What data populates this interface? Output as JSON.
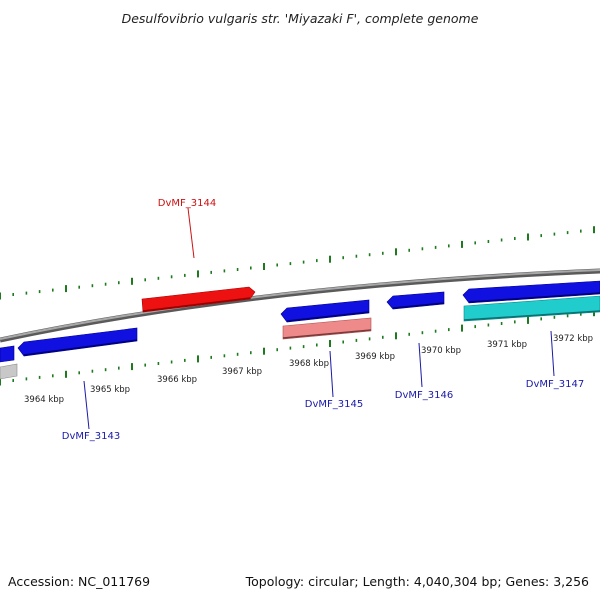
{
  "title": "Desulfovibrio vulgaris str. 'Miyazaki F', complete genome",
  "footer": {
    "accession": "Accession: NC_011769",
    "summary": "Topology: circular; Length: 4,040,304 bp; Genes: 3,256"
  },
  "colors": {
    "backbone": "#808080",
    "tick": "#1f7a1f",
    "gene_blue": "#1010e0",
    "gene_red": "#ee1111",
    "gene_pink": "#ee8a8a",
    "gene_cyan": "#20cccc",
    "gene_gray": "#c0c0c0",
    "label_blue": "#1a1aa8",
    "label_red": "#cc1111"
  },
  "ruler": {
    "labels": [
      "3964 kbp",
      "3965 kbp",
      "3966 kbp",
      "3967 kbp",
      "3968 kbp",
      "3969 kbp",
      "3970 kbp",
      "3971 kbp",
      "3972 kbp"
    ]
  },
  "genes": [
    {
      "name": "DvMF_3143",
      "strand": "reverse",
      "color": "blue"
    },
    {
      "name": "DvMF_3144",
      "strand": "forward",
      "color": "red"
    },
    {
      "name": "DvMF_3145",
      "strand": "reverse",
      "color": "blue"
    },
    {
      "name": "DvMF_3146",
      "strand": "reverse",
      "color": "blue"
    },
    {
      "name": "DvMF_3147",
      "strand": "reverse",
      "color": "blue"
    }
  ]
}
